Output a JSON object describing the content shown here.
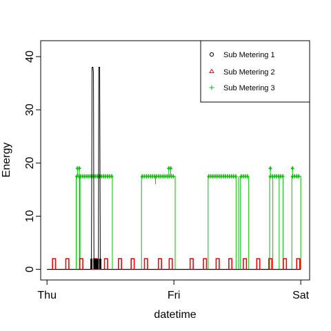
{
  "chart_data": {
    "type": "line",
    "title": "",
    "xlabel": "datetime",
    "ylabel": "Energy",
    "x_ticks": [
      "Thu",
      "Fri",
      "Sat"
    ],
    "x_range_days": [
      -0.05,
      2.07
    ],
    "ylim": [
      -2,
      43
    ],
    "y_ticks": [
      0,
      10,
      20,
      30,
      40
    ],
    "grid": false,
    "legend_position": "top-right",
    "series": [
      {
        "name": "Sub Metering 1",
        "color": "#000000",
        "marker": "circle",
        "points": [
          [
            0.0,
            0
          ],
          [
            0.345,
            0
          ],
          [
            0.35,
            1
          ],
          [
            0.355,
            38
          ],
          [
            0.362,
            38
          ],
          [
            0.366,
            37
          ],
          [
            0.37,
            1
          ],
          [
            0.376,
            2
          ],
          [
            0.382,
            1
          ],
          [
            0.388,
            2
          ],
          [
            0.394,
            1
          ],
          [
            0.4,
            2
          ],
          [
            0.405,
            1
          ],
          [
            0.408,
            38
          ],
          [
            0.415,
            38
          ],
          [
            0.42,
            1
          ],
          [
            0.425,
            0
          ],
          [
            2.0,
            0
          ]
        ]
      },
      {
        "name": "Sub Metering 2",
        "color": "#ff0000",
        "marker": "triangle",
        "spikes_at_days": [
          0.055,
          0.16,
          0.27,
          0.38,
          0.465,
          0.575,
          0.675,
          0.78,
          0.89,
          0.975,
          1.14,
          1.245,
          1.345,
          1.445,
          1.56,
          1.665,
          1.76,
          1.875,
          1.98
        ],
        "spike_value": 2,
        "end_value": 2
      },
      {
        "name": "Sub Metering 3",
        "color": "#00c000",
        "marker": "plus",
        "segments": [
          {
            "start": 0.23,
            "end": 0.26,
            "level": 17.5
          },
          {
            "start": 0.26,
            "end": 0.515,
            "level": 17.5
          },
          {
            "start": 0.745,
            "end": 1.01,
            "level": 17.5
          },
          {
            "start": 1.27,
            "end": 1.49,
            "level": 17.5
          },
          {
            "start": 1.525,
            "end": 1.59,
            "level": 17.5
          },
          {
            "start": 1.755,
            "end": 1.86,
            "level": 17.5
          },
          {
            "start": 1.93,
            "end": 2.0,
            "level": 17.5
          }
        ],
        "peaks": [
          {
            "x": 0.24,
            "y": 19
          },
          {
            "x": 0.255,
            "y": 19
          },
          {
            "x": 0.96,
            "y": 19
          },
          {
            "x": 0.975,
            "y": 19
          },
          {
            "x": 1.76,
            "y": 19
          },
          {
            "x": 1.935,
            "y": 19
          }
        ],
        "dips": [
          {
            "x": 0.255,
            "y": 0
          },
          {
            "x": 0.855,
            "y": 16
          },
          {
            "x": 1.51,
            "y": 0
          },
          {
            "x": 1.78,
            "y": 0
          },
          {
            "x": 1.83,
            "y": 0
          }
        ]
      }
    ]
  }
}
